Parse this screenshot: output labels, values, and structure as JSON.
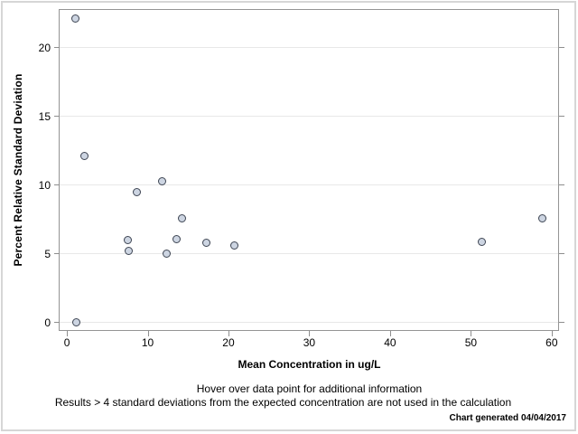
{
  "chart_data": {
    "type": "scatter",
    "title": "",
    "xlabel": "Mean Concentration in ug/L",
    "ylabel": "Percent Relative Standard Deviation",
    "x_ticks": [
      0,
      10,
      20,
      30,
      40,
      50,
      60
    ],
    "y_ticks": [
      0,
      5,
      10,
      15,
      20
    ],
    "xlim": [
      -0.9,
      60.8
    ],
    "ylim": [
      -0.55,
      22.75
    ],
    "grid": "horizontal-only",
    "legend": "none",
    "series": [
      {
        "name": "percent-rsd-vs-mean-concentration",
        "points": [
          {
            "x": 1.1,
            "y": 22.1
          },
          {
            "x": 1.2,
            "y": 0.0
          },
          {
            "x": 2.2,
            "y": 12.1
          },
          {
            "x": 7.5,
            "y": 6.0
          },
          {
            "x": 7.7,
            "y": 5.2
          },
          {
            "x": 8.6,
            "y": 9.5
          },
          {
            "x": 11.8,
            "y": 10.3
          },
          {
            "x": 12.3,
            "y": 5.0
          },
          {
            "x": 13.6,
            "y": 6.1
          },
          {
            "x": 14.2,
            "y": 7.6
          },
          {
            "x": 17.3,
            "y": 5.8
          },
          {
            "x": 20.7,
            "y": 5.6
          },
          {
            "x": 51.3,
            "y": 5.9
          },
          {
            "x": 58.8,
            "y": 7.6
          }
        ]
      }
    ],
    "colors": {
      "marker_fill": "#cdd5e2",
      "marker_stroke": "#3e4553",
      "gridline": "#e8e8e8",
      "frame": "#949494",
      "tick": "#8e8e8e",
      "text": "#000000",
      "outer_border": "#d6d6d6"
    }
  },
  "footer": {
    "line1": "Hover over data point for additional information",
    "line2": "Results > 4 standard deviations from the expected concentration are not used in the calculation",
    "credit": "Chart generated 04/04/2017"
  }
}
